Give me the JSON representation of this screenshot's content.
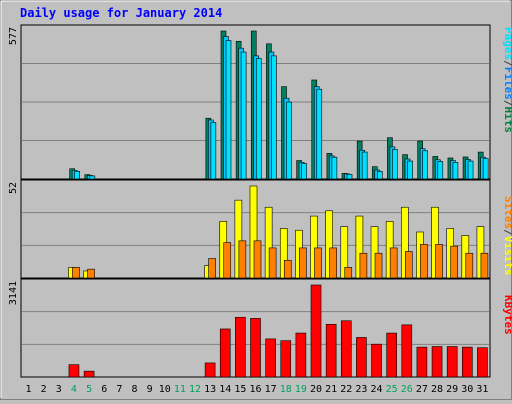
{
  "chart_data": {
    "type": "bar",
    "title": "Daily usage for January 2014",
    "days": [
      "1",
      "2",
      "3",
      "4",
      "5",
      "6",
      "7",
      "8",
      "9",
      "10",
      "11",
      "12",
      "13",
      "14",
      "15",
      "16",
      "17",
      "18",
      "19",
      "20",
      "21",
      "22",
      "23",
      "24",
      "25",
      "26",
      "27",
      "28",
      "29",
      "30",
      "31"
    ],
    "weekend_days": [
      "4",
      "5",
      "11",
      "12",
      "18",
      "19",
      "25",
      "26"
    ],
    "panels": [
      {
        "id": "hits",
        "scale_label": "577",
        "ymax": 577,
        "right_label": [
          "Pages",
          "/",
          "Files",
          "/",
          "Hits"
        ],
        "right_label_colors": [
          "#00e0ff",
          "#404040",
          "#0080ff",
          "#404040",
          "#008040"
        ],
        "series": [
          {
            "name": "Hits",
            "color": "#008060",
            "values": [
              0,
              0,
              0,
              40,
              17,
              0,
              0,
              0,
              0,
              0,
              0,
              0,
              237,
              577,
              537,
              577,
              527,
              360,
              72,
              386,
              100,
              22,
              148,
              48,
              161,
              95,
              148,
              88,
              82,
              86,
              105
            ]
          },
          {
            "name": "Files",
            "color": "#00c8ff",
            "values": [
              0,
              0,
              0,
              34,
              14,
              0,
              0,
              0,
              0,
              0,
              0,
              0,
              230,
              555,
              510,
              480,
              495,
              315,
              65,
              360,
              90,
              20,
              112,
              35,
              125,
              78,
              118,
              75,
              72,
              76,
              85
            ]
          },
          {
            "name": "Pages",
            "color": "#00e0ff",
            "values": [
              0,
              0,
              0,
              30,
              12,
              0,
              0,
              0,
              0,
              0,
              0,
              0,
              220,
              540,
              495,
              470,
              480,
              300,
              60,
              350,
              85,
              18,
              105,
              30,
              115,
              70,
              110,
              68,
              65,
              70,
              80
            ]
          }
        ]
      },
      {
        "id": "visits",
        "scale_label": "52",
        "ymax": 52,
        "right_label": [
          "Sites",
          "/",
          "Visits"
        ],
        "right_label_colors": [
          "#ff8000",
          "#404040",
          "#ffff00"
        ],
        "series": [
          {
            "name": "Visits",
            "color": "#ffff00",
            "values": [
              0,
              0,
              0,
              6,
              4,
              0,
              0,
              0,
              0,
              0,
              0,
              0,
              7,
              32,
              44,
              52,
              40,
              28,
              27,
              35,
              38,
              29,
              35,
              29,
              32,
              40,
              26,
              40,
              28,
              24,
              29
            ]
          },
          {
            "name": "Sites",
            "color": "#ff8000",
            "values": [
              0,
              0,
              0,
              6,
              5,
              0,
              0,
              0,
              0,
              0,
              0,
              0,
              11,
              20,
              21,
              21,
              17,
              10,
              17,
              17,
              17,
              6,
              14,
              14,
              17,
              15,
              19,
              19,
              18,
              14,
              14
            ]
          }
        ]
      },
      {
        "id": "kbytes",
        "scale_label": "3141",
        "ymax": 3141,
        "right_label": [
          "KBytes"
        ],
        "right_label_colors": [
          "#ff0000"
        ],
        "series": [
          {
            "name": "KBytes",
            "color": "#ff0000",
            "values": [
              0,
              0,
              0,
              420,
              200,
              0,
              0,
              0,
              0,
              0,
              0,
              0,
              480,
              1640,
              2040,
              2000,
              1300,
              1240,
              1500,
              3141,
              1800,
              1920,
              1350,
              1120,
              1500,
              1780,
              1020,
              1040,
              1040,
              1020,
              1000
            ]
          }
        ]
      }
    ]
  }
}
